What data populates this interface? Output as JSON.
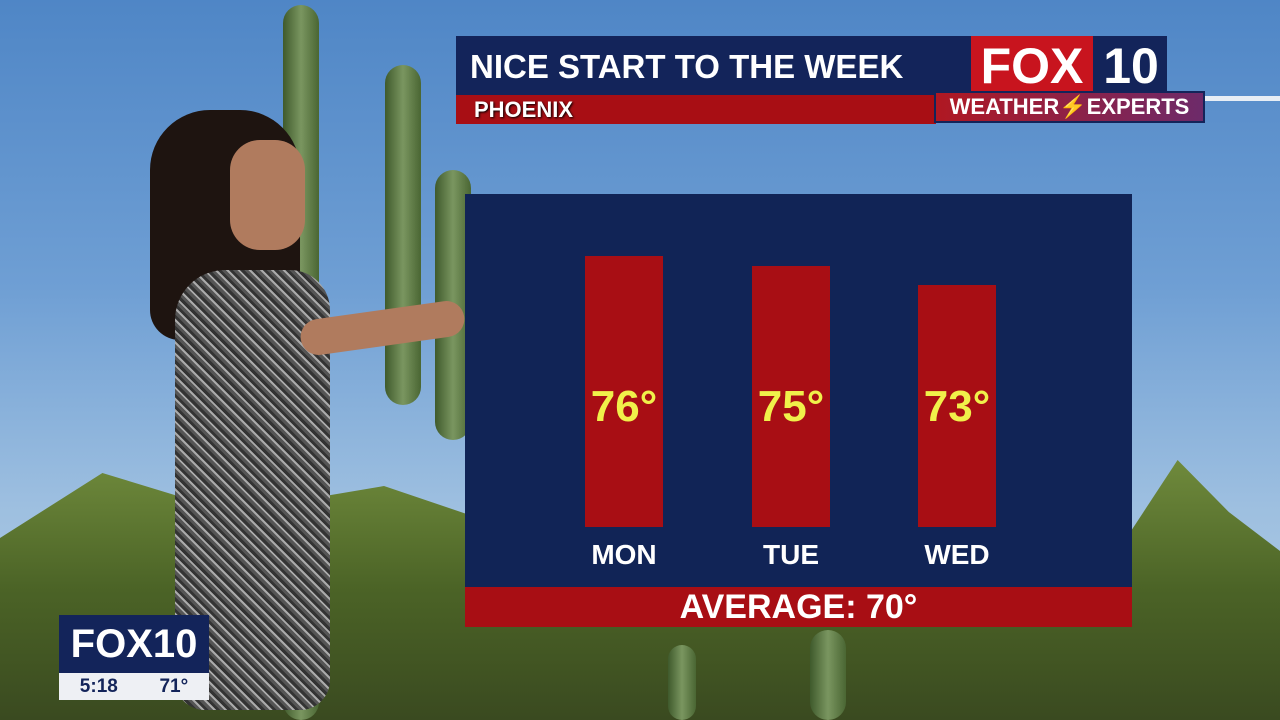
{
  "header": {
    "title": "NICE START TO THE WEEK",
    "location": "PHOENIX"
  },
  "logo": {
    "fox": "FOX",
    "num": "10",
    "tagline_left": "WEATHER",
    "tagline_right": "EXPERTS",
    "bolt_icon": "lightning-bolt-icon"
  },
  "chart_data": {
    "type": "bar",
    "categories": [
      "MON",
      "TUE",
      "WED"
    ],
    "values": [
      76,
      75,
      73
    ],
    "labels": [
      "76°",
      "75°",
      "73°"
    ],
    "ylim": [
      48,
      78
    ],
    "grid": false,
    "bar_color": "#a80e14",
    "background_color": "#112456",
    "label_color": "#f0f04a"
  },
  "footer": {
    "average": "AVERAGE:  70°"
  },
  "bug": {
    "logo": "FOX10",
    "time": "5:18",
    "temp": "71°"
  },
  "colors": {
    "navy": "#13245a",
    "red": "#a80e14"
  }
}
